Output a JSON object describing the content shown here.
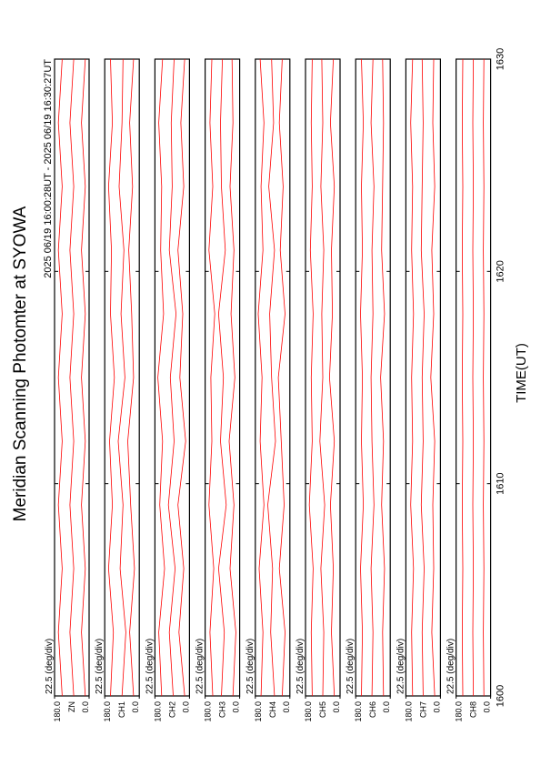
{
  "page": {
    "title": "Meridian Scanning Photomter at SYOWA",
    "subtitle": "2025 06/19 16:00:28UT - 2025 06/19 16:30:27UT",
    "xlabel": "TIME(UT)",
    "xticks": [
      1600,
      1610,
      1620,
      1630
    ]
  },
  "chart_data": [
    {
      "type": "line",
      "channel": "ZN",
      "scale_label": "22.5 (deg/div)",
      "x": [
        1600,
        1603,
        1606,
        1609,
        1612,
        1615,
        1618,
        1621,
        1624,
        1627,
        1630
      ],
      "xlim": [
        1600,
        1630
      ],
      "ylim": [
        0,
        180
      ],
      "yticks": [
        {
          "value": 180,
          "label": "180.0"
        },
        {
          "value": 0,
          "label": "0.0"
        }
      ],
      "series": [
        {
          "color": "#ff0000",
          "values": [
            20,
            40,
            20,
            40,
            20,
            40,
            20,
            40,
            20,
            40,
            20
          ]
        },
        {
          "color": "#ff0000",
          "values": [
            80,
            100,
            80,
            100,
            80,
            100,
            80,
            100,
            80,
            100,
            80
          ]
        },
        {
          "color": "#ff0000",
          "values": [
            140,
            160,
            140,
            160,
            140,
            160,
            140,
            160,
            140,
            160,
            140
          ]
        }
      ]
    },
    {
      "type": "line",
      "channel": "CH1",
      "scale_label": "22.5 (deg/div)",
      "x": [
        1600,
        1603,
        1606,
        1609,
        1612,
        1615,
        1618,
        1621,
        1624,
        1627,
        1630
      ],
      "xlim": [
        1600,
        1630
      ],
      "ylim": [
        0,
        180
      ],
      "yticks": [
        {
          "value": 180,
          "label": "180.0"
        },
        {
          "value": 0,
          "label": "0.0"
        }
      ],
      "series": [
        {
          "color": "#ff0000",
          "values": [
            30,
            50,
            25,
            45,
            60,
            30,
            40,
            55,
            35,
            50,
            30
          ]
        },
        {
          "color": "#ff0000",
          "values": [
            90,
            70,
            100,
            85,
            110,
            75,
            95,
            80,
            105,
            90,
            85
          ]
        },
        {
          "color": "#ff0000",
          "values": [
            150,
            135,
            160,
            140,
            155,
            130,
            150,
            145,
            160,
            140,
            150
          ]
        }
      ]
    },
    {
      "type": "line",
      "channel": "CH2",
      "scale_label": "22.5 (deg/div)",
      "x": [
        1600,
        1603,
        1606,
        1609,
        1612,
        1615,
        1618,
        1621,
        1624,
        1627,
        1630
      ],
      "xlim": [
        1600,
        1630
      ],
      "ylim": [
        0,
        180
      ],
      "yticks": [
        {
          "value": 180,
          "label": "180.0"
        },
        {
          "value": 0,
          "label": "0.0"
        }
      ],
      "series": [
        {
          "color": "#ff0000",
          "values": [
            25,
            55,
            30,
            60,
            20,
            50,
            35,
            60,
            30,
            45,
            25
          ]
        },
        {
          "color": "#ff0000",
          "values": [
            85,
            105,
            75,
            110,
            80,
            100,
            70,
            105,
            90,
            95,
            80
          ]
        },
        {
          "color": "#ff0000",
          "values": [
            145,
            160,
            130,
            155,
            140,
            165,
            135,
            150,
            145,
            160,
            140
          ]
        }
      ]
    },
    {
      "type": "line",
      "channel": "CH3",
      "scale_label": "22.5 (deg/div)",
      "x": [
        1600,
        1603,
        1606,
        1609,
        1612,
        1615,
        1618,
        1621,
        1624,
        1627,
        1630
      ],
      "xlim": [
        1600,
        1630
      ],
      "ylim": [
        0,
        180
      ],
      "yticks": [
        {
          "value": 180,
          "label": "180.0"
        },
        {
          "value": 0,
          "label": "0.0"
        }
      ],
      "series": [
        {
          "color": "#ff0000",
          "values": [
            35,
            20,
            50,
            30,
            55,
            25,
            45,
            30,
            50,
            35,
            40
          ]
        },
        {
          "color": "#ff0000",
          "values": [
            95,
            80,
            110,
            70,
            100,
            85,
            110,
            75,
            95,
            100,
            90
          ]
        },
        {
          "color": "#ff0000",
          "values": [
            140,
            155,
            135,
            160,
            145,
            150,
            130,
            160,
            140,
            155,
            145
          ]
        }
      ]
    },
    {
      "type": "line",
      "channel": "CH4",
      "scale_label": "22.5 (deg/div)",
      "x": [
        1600,
        1603,
        1606,
        1609,
        1612,
        1615,
        1618,
        1621,
        1624,
        1627,
        1630
      ],
      "xlim": [
        1600,
        1630
      ],
      "ylim": [
        0,
        180
      ],
      "yticks": [
        {
          "value": 180,
          "label": "180.0"
        },
        {
          "value": 0,
          "label": "0.0"
        }
      ],
      "series": [
        {
          "color": "#ff0000",
          "values": [
            40,
            25,
            55,
            30,
            45,
            60,
            25,
            50,
            35,
            55,
            40
          ]
        },
        {
          "color": "#ff0000",
          "values": [
            80,
            100,
            90,
            115,
            75,
            95,
            105,
            80,
            110,
            85,
            95
          ]
        },
        {
          "color": "#ff0000",
          "values": [
            150,
            140,
            160,
            135,
            155,
            145,
            165,
            140,
            150,
            135,
            155
          ]
        }
      ]
    },
    {
      "type": "line",
      "channel": "CH5",
      "scale_label": "22.5 (deg/div)",
      "x": [
        1600,
        1603,
        1606,
        1609,
        1612,
        1615,
        1618,
        1621,
        1624,
        1627,
        1630
      ],
      "xlim": [
        1600,
        1630
      ],
      "ylim": [
        0,
        180
      ],
      "yticks": [
        {
          "value": 180,
          "label": "180.0"
        },
        {
          "value": 0,
          "label": "0.0"
        }
      ],
      "series": [
        {
          "color": "#ff0000",
          "values": [
            30,
            45,
            35,
            50,
            30,
            55,
            40,
            45,
            30,
            50,
            35
          ]
        },
        {
          "color": "#ff0000",
          "values": [
            90,
            85,
            100,
            80,
            105,
            90,
            95,
            85,
            100,
            90,
            95
          ]
        },
        {
          "color": "#ff0000",
          "values": [
            145,
            150,
            140,
            160,
            145,
            150,
            140,
            155,
            145,
            150,
            145
          ]
        }
      ]
    },
    {
      "type": "line",
      "channel": "CH6",
      "scale_label": "22.5 (deg/div)",
      "x": [
        1600,
        1603,
        1606,
        1609,
        1612,
        1615,
        1618,
        1621,
        1624,
        1627,
        1630
      ],
      "xlim": [
        1600,
        1630
      ],
      "ylim": [
        0,
        180
      ],
      "yticks": [
        {
          "value": 180,
          "label": "180.0"
        },
        {
          "value": 0,
          "label": "0.0"
        }
      ],
      "series": [
        {
          "color": "#ff0000",
          "values": [
            35,
            40,
            30,
            45,
            35,
            50,
            30,
            45,
            40,
            35,
            40
          ]
        },
        {
          "color": "#ff0000",
          "values": [
            95,
            90,
            100,
            85,
            95,
            100,
            90,
            95,
            85,
            100,
            90
          ]
        },
        {
          "color": "#ff0000",
          "values": [
            150,
            145,
            155,
            140,
            150,
            145,
            155,
            145,
            150,
            140,
            150
          ]
        }
      ]
    },
    {
      "type": "line",
      "channel": "CH7",
      "scale_label": "22.5 (deg/div)",
      "x": [
        1600,
        1603,
        1606,
        1609,
        1612,
        1615,
        1618,
        1621,
        1624,
        1627,
        1630
      ],
      "xlim": [
        1600,
        1630
      ],
      "ylim": [
        0,
        180
      ],
      "yticks": [
        {
          "value": 180,
          "label": "180.0"
        },
        {
          "value": 0,
          "label": "0.0"
        }
      ],
      "series": [
        {
          "color": "#ff0000",
          "values": [
            30,
            45,
            35,
            40,
            30,
            50,
            35,
            45,
            30,
            40,
            35
          ]
        },
        {
          "color": "#ff0000",
          "values": [
            90,
            95,
            85,
            100,
            90,
            95,
            85,
            100,
            95,
            90,
            95
          ]
        },
        {
          "color": "#ff0000",
          "values": [
            145,
            150,
            140,
            155,
            145,
            150,
            140,
            150,
            145,
            155,
            145
          ]
        }
      ]
    },
    {
      "type": "line",
      "channel": "CH8",
      "scale_label": "22.5 (deg/div)",
      "x": [
        1600,
        1603,
        1606,
        1609,
        1612,
        1615,
        1618,
        1621,
        1624,
        1627,
        1630
      ],
      "xlim": [
        1600,
        1630
      ],
      "ylim": [
        0,
        180
      ],
      "yticks": [
        {
          "value": 180,
          "label": "180.0"
        },
        {
          "value": 0,
          "label": "0.0"
        }
      ],
      "series": [
        {
          "color": "#ff0000",
          "values": [
            35,
            38,
            35,
            38,
            35,
            38,
            35,
            38,
            35,
            38,
            35
          ]
        },
        {
          "color": "#ff0000",
          "values": [
            90,
            93,
            90,
            93,
            90,
            93,
            90,
            93,
            90,
            93,
            90
          ]
        },
        {
          "color": "#ff0000",
          "values": [
            145,
            148,
            145,
            148,
            145,
            148,
            145,
            148,
            145,
            148,
            145
          ]
        }
      ]
    }
  ]
}
